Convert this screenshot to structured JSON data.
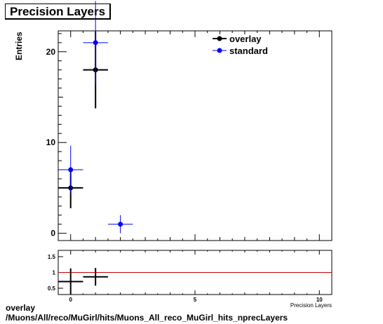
{
  "chart_data": {
    "title": "Precision Layers",
    "ylabel": "Entries",
    "xlabel": "Precision Layers",
    "xlim": [
      -0.5,
      10.5
    ],
    "main": {
      "type": "scatter",
      "ylim": [
        -0.8,
        22.3
      ],
      "yticks": [
        0,
        10,
        20
      ],
      "xticks": [
        0,
        5,
        10
      ],
      "series": [
        {
          "name": "overlay",
          "color": "#000000",
          "points": [
            {
              "x": 0,
              "y": 5,
              "xerr": 0.5,
              "yerr": 2.24
            },
            {
              "x": 1,
              "y": 18,
              "xerr": 0.5,
              "yerr": 4.24
            }
          ]
        },
        {
          "name": "standard",
          "color": "#0000ff",
          "points": [
            {
              "x": 0,
              "y": 7,
              "xerr": 0.5,
              "yerr": 2.65
            },
            {
              "x": 1,
              "y": 21,
              "xerr": 0.5,
              "yerr": 4.58
            },
            {
              "x": 2,
              "y": 1,
              "xerr": 0.5,
              "yerr": 1.0
            }
          ]
        }
      ]
    },
    "ratio": {
      "type": "scatter",
      "ylim": [
        0.3,
        1.7
      ],
      "yticks": [
        "0.5",
        "1",
        "1.5"
      ],
      "reference_line": {
        "y": 1,
        "color": "#cc0000"
      },
      "points": [
        {
          "x": 0,
          "y": 0.71,
          "xerr": 0.5,
          "yerr": 0.42
        },
        {
          "x": 1,
          "y": 0.86,
          "xerr": 0.5,
          "yerr": 0.28
        }
      ]
    }
  },
  "caption": {
    "line1": "overlay",
    "line2": "/Muons/All/reco/MuGirl/hits/Muons_All_reco_MuGirl_hits_nprecLayers"
  }
}
